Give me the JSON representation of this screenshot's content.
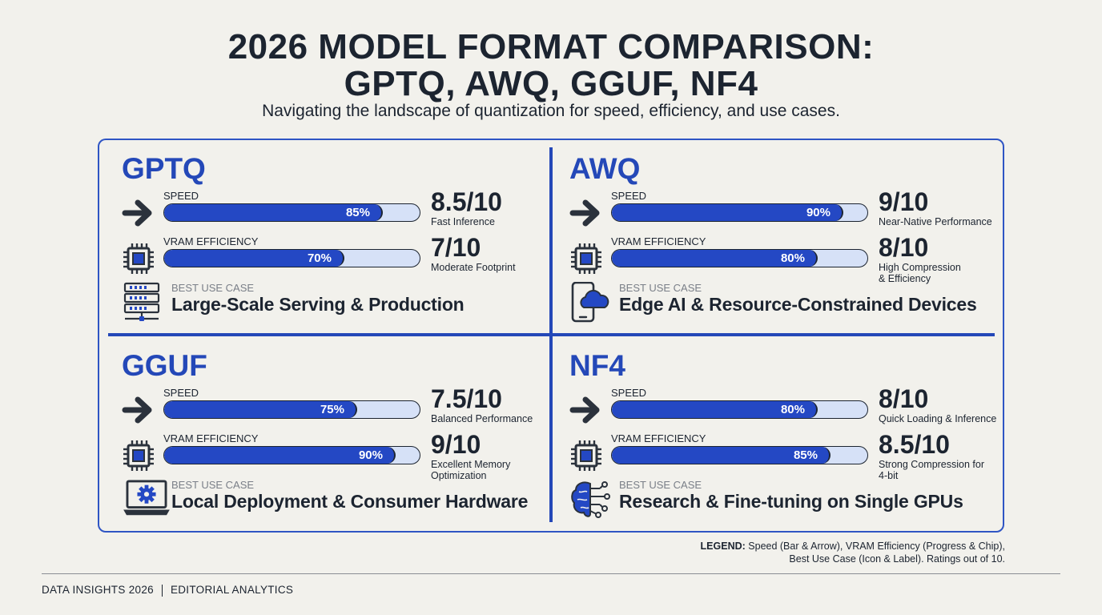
{
  "header": {
    "title_line1": "2026 MODEL FORMAT COMPARISON:",
    "title_line2": "GPTQ, AWQ, GGUF, NF4",
    "subtitle": "Navigating the landscape of quantization for speed, efficiency, and use cases."
  },
  "colors": {
    "accent": "#2448b8",
    "bar_fill": "#2448c4",
    "bar_track": "#d6e1f7",
    "ink": "#1c2430",
    "background": "#f2f1ec"
  },
  "chart_data": {
    "type": "bar",
    "categories": [
      "GPTQ",
      "AWQ",
      "GGUF",
      "NF4"
    ],
    "metric_labels": {
      "speed": "SPEED",
      "vram": "VRAM EFFICIENCY",
      "use_case": "BEST USE CASE"
    },
    "formats": [
      {
        "name": "GPTQ",
        "speed": {
          "percent": 85,
          "percent_label": "85%",
          "score": "8.5/10",
          "note": "Fast Inference"
        },
        "vram": {
          "percent": 70,
          "percent_label": "70%",
          "score": "7/10",
          "note": "Moderate Footprint"
        },
        "use_case": "Large-Scale Serving & Production",
        "use_case_icon": "server-rack-icon"
      },
      {
        "name": "AWQ",
        "speed": {
          "percent": 90,
          "percent_label": "90%",
          "score": "9/10",
          "note": "Near-Native Performance"
        },
        "vram": {
          "percent": 80,
          "percent_label": "80%",
          "score": "8/10",
          "note": "High Compression\n& Efficiency"
        },
        "use_case": "Edge AI & Resource-Constrained Devices",
        "use_case_icon": "phone-cloud-icon"
      },
      {
        "name": "GGUF",
        "speed": {
          "percent": 75,
          "percent_label": "75%",
          "score": "7.5/10",
          "note": "Balanced Performance"
        },
        "vram": {
          "percent": 90,
          "percent_label": "90%",
          "score": "9/10",
          "note": "Excellent Memory\nOptimization"
        },
        "use_case": "Local Deployment & Consumer Hardware",
        "use_case_icon": "laptop-gear-icon"
      },
      {
        "name": "NF4",
        "speed": {
          "percent": 80,
          "percent_label": "80%",
          "score": "8/10",
          "note": "Quick Loading & Inference"
        },
        "vram": {
          "percent": 85,
          "percent_label": "85%",
          "score": "8.5/10",
          "note": "Strong Compression for\n4-bit"
        },
        "use_case": "Research & Fine-tuning on Single GPUs",
        "use_case_icon": "brain-circuit-icon"
      }
    ]
  },
  "legend": {
    "label": "LEGEND:",
    "line1": "Speed (Bar & Arrow), VRAM Efficiency (Progress & Chip),",
    "line2": "Best Use Case (Icon & Label). Ratings out of 10."
  },
  "footer": {
    "left": "DATA INSIGHTS 2026",
    "right": "EDITORIAL ANALYTICS"
  }
}
